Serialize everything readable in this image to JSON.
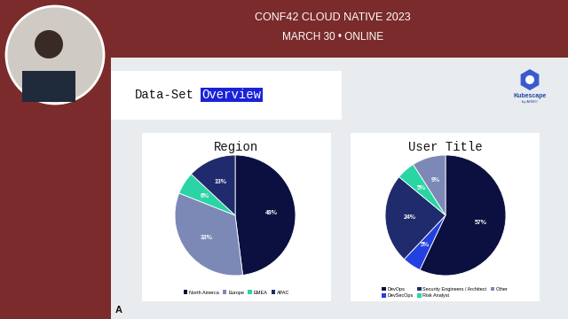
{
  "header": {
    "event": "CONF42 CLOUD NATIVE 2023",
    "date": "MARCH 30 • ONLINE"
  },
  "slide": {
    "title": "Data-Set Overview",
    "logo": {
      "name": "Kubescape",
      "byline": "by ARMO"
    },
    "footer": "A"
  },
  "chart_data": [
    {
      "type": "pie",
      "title": "Region",
      "categories": [
        "North Amerca",
        "Europe",
        "EMEA",
        "APAC"
      ],
      "values": [
        48,
        33,
        6,
        13
      ],
      "value_labels": [
        "48%",
        "33%",
        "6%",
        "13%"
      ],
      "colors": [
        "#0b1040",
        "#7c89b6",
        "#2bd4a4",
        "#1f2b6c"
      ],
      "data_labels": true,
      "legend": "bottom"
    },
    {
      "type": "pie",
      "title": "User Title",
      "categories": [
        "DevOps",
        "DevSecOps",
        "Security Engineers / Architect",
        "Risk Analyst",
        "Other"
      ],
      "values": [
        57,
        5,
        24,
        5,
        9
      ],
      "value_labels": [
        "57%",
        "5%",
        "24%",
        "5%",
        "9%"
      ],
      "colors": [
        "#0b1040",
        "#2340e0",
        "#1f2b6c",
        "#2bd4a4",
        "#7c89b6"
      ],
      "data_labels": true,
      "legend": "bottom"
    }
  ]
}
